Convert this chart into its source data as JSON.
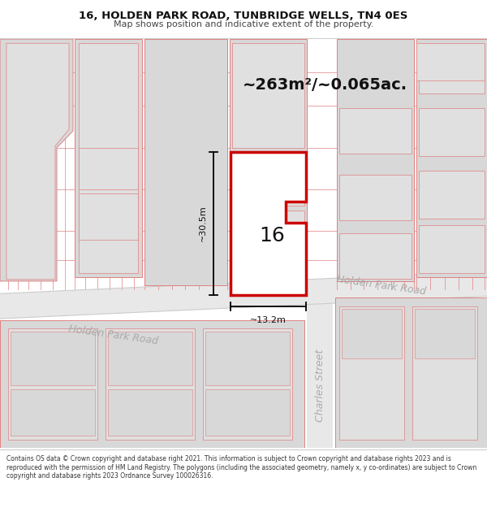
{
  "title_line1": "16, HOLDEN PARK ROAD, TUNBRIDGE WELLS, TN4 0ES",
  "title_line2": "Map shows position and indicative extent of the property.",
  "area_text": "~263m²/~0.065ac.",
  "label_16": "16",
  "dim_height": "~30.5m",
  "dim_width": "~13.2m",
  "street_upper": "Holden Park Road",
  "street_lower": "Holden Park Road",
  "street_charles": "Charles Street",
  "footer": "Contains OS data © Crown copyright and database right 2021. This information is subject to Crown copyright and database rights 2023 and is reproduced with the permission of HM Land Registry. The polygons (including the associated geometry, namely x, y co-ordinates) are subject to Crown copyright and database rights 2023 Ordnance Survey 100026316.",
  "bg_color": "#ffffff",
  "map_bg": "#f0f0f0",
  "road_color": "#e0e0e0",
  "building_fill": "#d8d8d8",
  "building_fill2": "#e8e8e8",
  "pink_line": "#e08080",
  "highlight_color": "#cc0000",
  "street_text_color": "#aaaaaa",
  "dim_color": "#111111",
  "title_font": 9.5,
  "subtitle_font": 8.0,
  "area_font": 14,
  "label_font": 18,
  "dim_font": 8,
  "street_font": 9,
  "footer_font": 5.5
}
